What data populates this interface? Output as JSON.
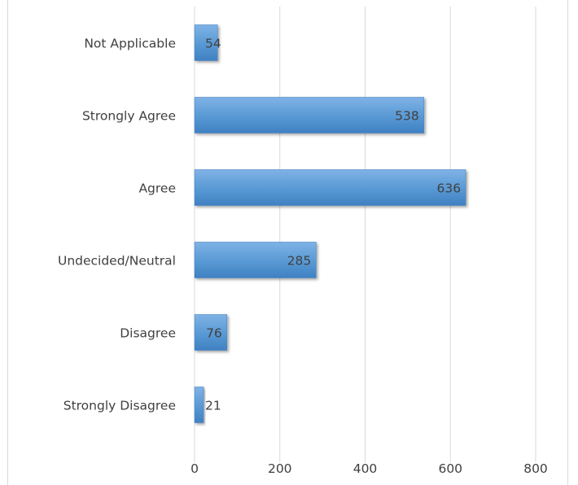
{
  "chart_data": {
    "type": "bar",
    "orientation": "horizontal",
    "categories": [
      "Not Applicable",
      "Strongly Agree",
      "Agree",
      "Undecided/Neutral",
      "Disagree",
      "Strongly Disagree"
    ],
    "values": [
      54,
      538,
      636,
      285,
      76,
      21
    ],
    "xlim": [
      0,
      800
    ],
    "xticks": [
      "0",
      "200",
      "400",
      "600",
      "800"
    ],
    "gridlines": true,
    "data_labels": true,
    "bar_color": "#5b9bd5",
    "title": "",
    "xlabel": "",
    "ylabel": ""
  }
}
